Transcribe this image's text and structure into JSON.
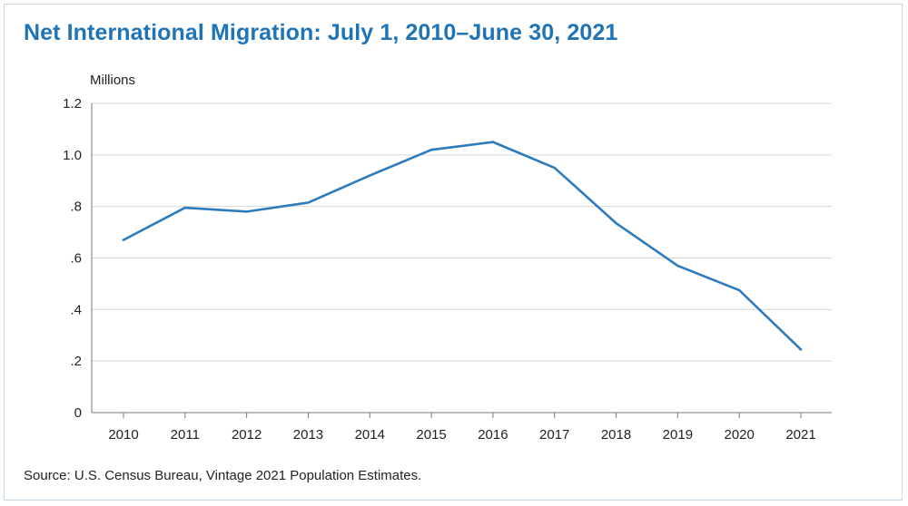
{
  "chart_data": {
    "type": "line",
    "title": "Net International Migration: July 1, 2010–June 30, 2021",
    "ylabel": "Millions",
    "xlabel": "",
    "categories": [
      "2010",
      "2011",
      "2012",
      "2013",
      "2014",
      "2015",
      "2016",
      "2017",
      "2018",
      "2019",
      "2020",
      "2021"
    ],
    "series": [
      {
        "name": "Net International Migration",
        "values": [
          0.67,
          0.795,
          0.78,
          0.815,
          0.92,
          1.02,
          1.05,
          0.95,
          0.735,
          0.57,
          0.475,
          0.245
        ]
      }
    ],
    "ylim": [
      0,
      1.2
    ],
    "yticks": [
      0,
      0.2,
      0.4,
      0.6,
      0.8,
      1.0,
      1.2
    ],
    "ytick_labels": [
      "0",
      ".2",
      ".4",
      ".6",
      ".8",
      "1.0",
      "1.2"
    ],
    "grid": true,
    "colors": {
      "line": "#2b7bbd",
      "grid": "#d9d9d9",
      "axis": "#777777"
    }
  },
  "source": "Source: U.S. Census Bureau, Vintage 2021 Population Estimates."
}
